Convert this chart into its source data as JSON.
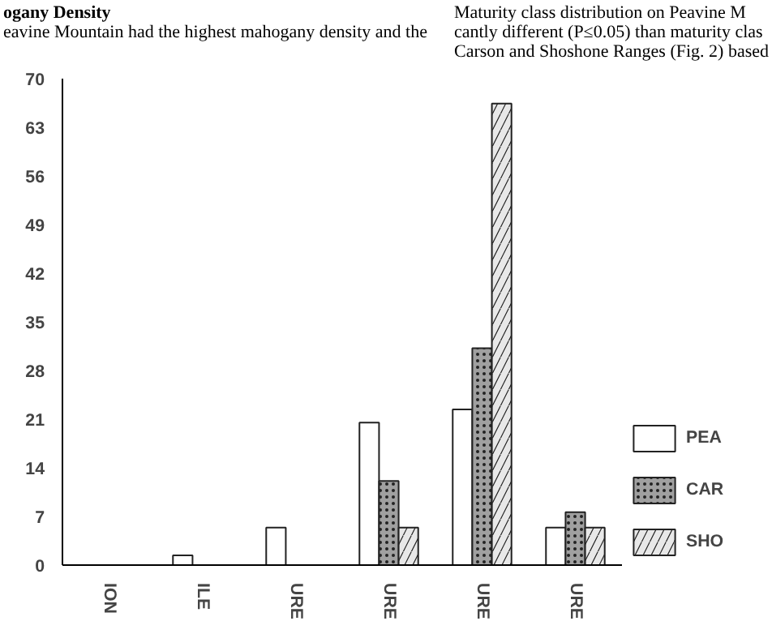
{
  "chart_data": {
    "type": "bar",
    "categories": [
      "ION",
      "ILE",
      "URE",
      "URE",
      "URE",
      "URE"
    ],
    "series": [
      {
        "name": "PEA",
        "color": "#ffffff",
        "values": [
          0,
          1.4,
          5.4,
          20.5,
          22.4,
          5.4
        ]
      },
      {
        "name": "CAR",
        "color": "#a0a0a0",
        "values": [
          0,
          0,
          0,
          12.1,
          31.2,
          7.6
        ]
      },
      {
        "name": "SHO",
        "color": "#e8e8e8",
        "values": [
          0,
          0,
          0,
          5.4,
          66.4,
          5.4
        ]
      }
    ],
    "ylim": [
      0,
      70
    ],
    "yticks": [
      0,
      7,
      14,
      21,
      28,
      35,
      42,
      49,
      56,
      63,
      70
    ],
    "grid": false,
    "legend": "right",
    "annotations": [
      "ogany Density",
      "eavine Mountain had the highest mahogany density and the",
      "Maturity class distribution on Peavine M",
      "cantly different (P≤0.05) than maturity clas",
      "Carson and Shoshone Ranges (Fig. 2) based"
    ]
  }
}
